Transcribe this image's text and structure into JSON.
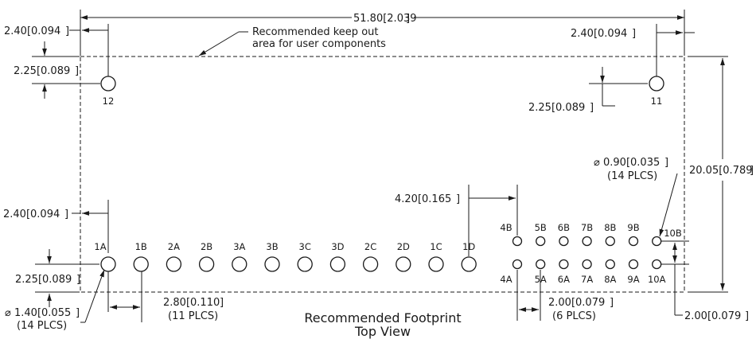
{
  "dimensions": {
    "overall_width": "51.80[2.039",
    "left_offset": "2.40[0.094",
    "right_offset": "2.40[0.094",
    "top_offset_left": "2.25[0.089",
    "top_offset_right": "2.25[0.089",
    "overall_height": "20.05[0.789",
    "pin_row_offset_x": "2.40[0.094",
    "pin_row_offset_y": "2.25[0.089",
    "gap_1d_4b": "4.20[0.165",
    "pitch": "2.80[0.110",
    "pitch_count": "(11 PLCS)",
    "small_pitch": "2.00[0.079",
    "small_pitch_count": "(6 PLCS)",
    "row_spacing": "2.00[0.079",
    "large_hole_dia": "1.40[0.055",
    "large_hole_count": "(14 PLCS)",
    "small_hole_dia": "0.90[0.035",
    "small_hole_count": "(14 PLCS)"
  },
  "note": {
    "line1": "Recommended keep out",
    "line2": "area for user components"
  },
  "mounting_holes": [
    "12",
    "11"
  ],
  "large_pins": [
    "1A",
    "1B",
    "2A",
    "2B",
    "3A",
    "3B",
    "3C",
    "3D",
    "2C",
    "2D",
    "1C",
    "1D"
  ],
  "small_pins_top": [
    "4B",
    "5B",
    "6B",
    "7B",
    "8B",
    "9B",
    "10B"
  ],
  "small_pins_bottom": [
    "4A",
    "5A",
    "6A",
    "7A",
    "8A",
    "9A",
    "10A"
  ],
  "caption": {
    "line1": "Recommended Footprint",
    "line2": "Top View"
  }
}
